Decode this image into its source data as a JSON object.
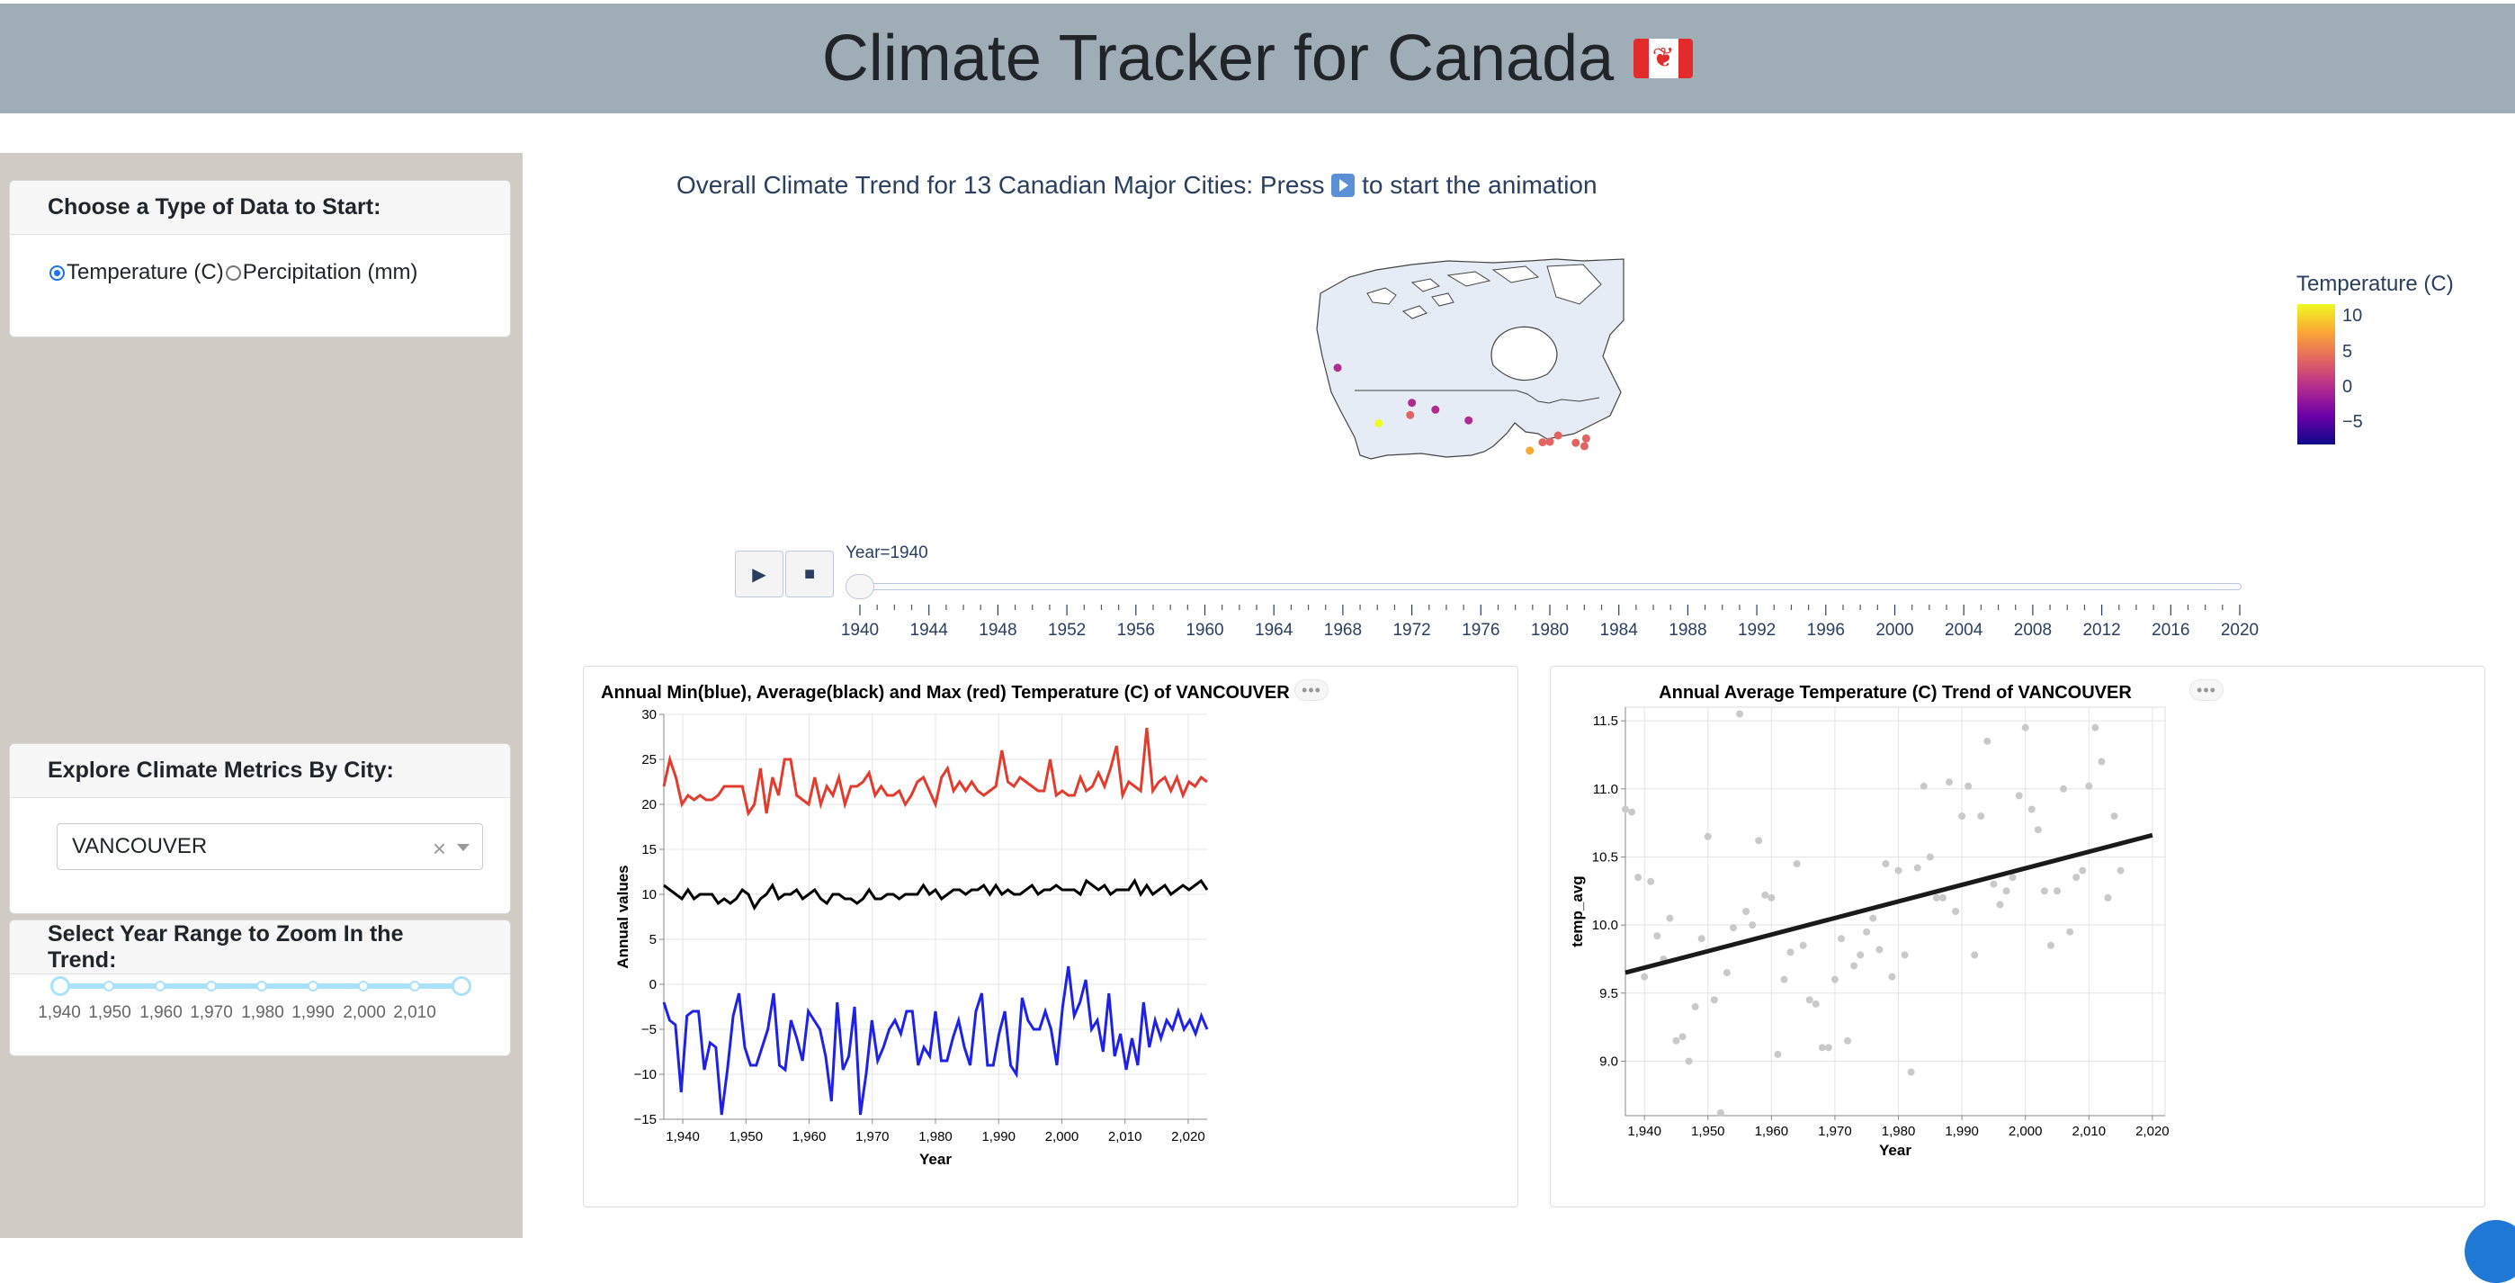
{
  "header": {
    "title": "Climate Tracker for Canada",
    "flag_icon": "canada-flag-icon"
  },
  "sidebar": {
    "data_type_card": {
      "title": "Choose a Type of Data to Start:",
      "options": [
        "Temperature (C)",
        "Percipitation (mm)"
      ],
      "selected": "Temperature (C)"
    },
    "city_card": {
      "title": "Explore Climate Metrics By City:",
      "selected_city": "VANCOUVER",
      "clear_label": "×"
    },
    "year_card": {
      "title": "Select Year Range to Zoom In the Trend:",
      "marks": [
        "1,940",
        "1,950",
        "1,960",
        "1,970",
        "1,980",
        "1,990",
        "2,000",
        "2,010"
      ],
      "range": [
        1940,
        2020
      ]
    }
  },
  "map": {
    "title_prefix": "Overall Climate Trend for 13 Canadian Major Cities: Press",
    "title_suffix": "to start the animation",
    "colorbar_title": "Temperature (C)",
    "colorbar_ticks": [
      "10",
      "5",
      "0",
      "−5"
    ],
    "colors": [
      "#f0f921",
      "#fca636",
      "#e16462",
      "#b12a90",
      "#6a00a8",
      "#0d0887"
    ],
    "cities": [
      {
        "lon": -135.0,
        "lat": 60.7,
        "temp": -1
      },
      {
        "lon": -123.1,
        "lat": 49.3,
        "temp": 11
      },
      {
        "lon": -114.0,
        "lat": 51.0,
        "temp": 4
      },
      {
        "lon": -113.5,
        "lat": 53.5,
        "temp": 2
      },
      {
        "lon": -106.7,
        "lat": 52.1,
        "temp": 2
      },
      {
        "lon": -97.1,
        "lat": 49.9,
        "temp": 2
      },
      {
        "lon": -79.4,
        "lat": 43.7,
        "temp": 7
      },
      {
        "lon": -75.7,
        "lat": 45.4,
        "temp": 6
      },
      {
        "lon": -73.6,
        "lat": 45.5,
        "temp": 6
      },
      {
        "lon": -71.2,
        "lat": 46.8,
        "temp": 4
      },
      {
        "lon": -66.1,
        "lat": 45.3,
        "temp": 5
      },
      {
        "lon": -63.6,
        "lat": 44.6,
        "temp": 6
      },
      {
        "lon": -63.1,
        "lat": 46.2,
        "temp": 5
      }
    ]
  },
  "animation": {
    "play_label": "▶",
    "stop_label": "■",
    "current_label": "Year=1940",
    "years": [
      "1940",
      "1944",
      "1948",
      "1952",
      "1956",
      "1960",
      "1964",
      "1968",
      "1972",
      "1976",
      "1980",
      "1984",
      "1988",
      "1992",
      "1996",
      "2000",
      "2004",
      "2008",
      "2012",
      "2016",
      "2020"
    ]
  },
  "chart_data": [
    {
      "type": "line",
      "title": "Annual Min(blue), Average(black) and Max (red) Temperature (C) of VANCOUVER",
      "xlabel": "Year",
      "ylabel": "Annual values",
      "xlim": [
        1937,
        2023
      ],
      "ylim": [
        -15,
        30
      ],
      "xticks": [
        "1,940",
        "1,950",
        "1,960",
        "1,970",
        "1,980",
        "1,990",
        "2,000",
        "2,010",
        "2,020"
      ],
      "yticks": [
        "30",
        "25",
        "20",
        "15",
        "10",
        "5",
        "0",
        "−5",
        "−10",
        "−15"
      ],
      "series": [
        {
          "color": "#e23c2e",
          "x_start": 1937,
          "values": [
            22,
            25,
            23,
            20,
            21,
            20.5,
            21,
            20.5,
            20.5,
            21,
            22,
            22,
            22,
            22,
            19,
            20,
            24,
            19,
            23,
            21,
            25,
            25,
            21,
            20.5,
            20,
            23,
            20,
            22,
            21,
            23,
            20,
            22,
            22,
            22.5,
            23.5,
            21,
            22,
            21,
            21,
            21.5,
            20,
            21,
            22.5,
            23,
            21.5,
            20,
            23,
            24,
            21.5,
            22.5,
            21.5,
            22.5,
            21.5,
            21,
            21.5,
            22,
            26,
            22.5,
            22,
            23,
            22.5,
            22,
            21.5,
            21.5,
            25,
            21,
            21.5,
            21,
            21,
            23,
            21.5,
            22,
            23.5,
            22,
            24,
            26.5,
            21,
            22.5,
            22,
            21.5,
            28.5,
            21.5,
            22.5,
            23,
            21.5,
            23,
            21,
            22.5,
            22,
            23,
            22.5
          ]
        },
        {
          "color": "#000000",
          "x_start": 1937,
          "values": [
            11,
            10.5,
            10,
            9.5,
            10.5,
            9.5,
            10,
            10,
            10,
            9,
            9.5,
            9,
            9.5,
            10.5,
            10,
            8.5,
            9.5,
            10,
            11,
            9.5,
            10,
            10,
            10.5,
            9.5,
            10,
            10.5,
            9.5,
            9,
            10,
            10,
            9.5,
            9.5,
            9,
            9.5,
            10.5,
            9.5,
            9.5,
            10,
            10,
            9.5,
            10,
            10,
            10,
            11,
            10,
            10.5,
            9.5,
            10,
            10.5,
            10.5,
            10,
            10.5,
            10.5,
            11,
            10,
            11,
            10,
            10.5,
            10,
            10,
            10.5,
            11,
            10,
            10.5,
            10.5,
            11,
            10.5,
            10.5,
            10.5,
            10,
            11.5,
            11,
            10.5,
            11,
            10,
            10.5,
            10.5,
            10.5,
            11.5,
            10,
            11,
            10,
            10.5,
            11,
            10,
            10.5,
            11,
            10.5,
            11,
            11.5,
            10.5
          ]
        },
        {
          "color": "#1f22e6",
          "x_start": 1937,
          "values": [
            -2,
            -4,
            -4.5,
            -12,
            -3.5,
            -3,
            -3,
            -9.5,
            -6.5,
            -7,
            -14.5,
            -9.5,
            -3.5,
            -1,
            -7,
            -9,
            -9,
            -7,
            -5,
            -1,
            -9,
            -9.5,
            -4,
            -6,
            -8.5,
            -3,
            -4,
            -5,
            -8,
            -13,
            -2,
            -9.5,
            -8,
            -2.5,
            -14.5,
            -10,
            -4,
            -8.5,
            -7,
            -5,
            -4,
            -5.5,
            -3,
            -3,
            -9,
            -7,
            -8,
            -3,
            -8.5,
            -8.5,
            -6,
            -4,
            -7,
            -9,
            -3,
            -1,
            -9,
            -9,
            -5.5,
            -3,
            -9,
            -10,
            -1.5,
            -4,
            -5,
            -5,
            -3,
            -5,
            -9,
            -2.5,
            2,
            -3.5,
            -2,
            0.5,
            -5,
            -4,
            -7.5,
            -1,
            -8,
            -5.5,
            -9.5,
            -6,
            -9,
            -2,
            -7,
            -4,
            -6,
            -4,
            -5,
            -3,
            -5,
            -4,
            -5.5,
            -3.5,
            -5
          ]
        }
      ]
    },
    {
      "type": "scatter",
      "title": "Annual Average Temperature (C) Trend of VANCOUVER",
      "xlabel": "Year",
      "ylabel": "temp_avg",
      "xlim": [
        1937,
        2022
      ],
      "ylim": [
        8.6,
        11.6
      ],
      "xticks": [
        "1,940",
        "1,950",
        "1,960",
        "1,970",
        "1,980",
        "1,990",
        "2,000",
        "2,010",
        "2,020"
      ],
      "yticks": [
        "11.5",
        "11.0",
        "10.5",
        "10.0",
        "9.5",
        "9.0"
      ],
      "trend": [
        [
          1937,
          9.65
        ],
        [
          2020,
          10.66
        ]
      ],
      "points": [
        [
          1937,
          10.85
        ],
        [
          1938,
          10.83
        ],
        [
          1939,
          10.35
        ],
        [
          1940,
          9.62
        ],
        [
          1941,
          10.32
        ],
        [
          1942,
          9.92
        ],
        [
          1943,
          9.75
        ],
        [
          1944,
          10.05
        ],
        [
          1945,
          9.15
        ],
        [
          1946,
          9.18
        ],
        [
          1947,
          9.0
        ],
        [
          1948,
          9.4
        ],
        [
          1949,
          9.9
        ],
        [
          1950,
          10.65
        ],
        [
          1951,
          9.45
        ],
        [
          1952,
          8.62
        ],
        [
          1953,
          9.65
        ],
        [
          1954,
          9.98
        ],
        [
          1955,
          11.55
        ],
        [
          1956,
          10.1
        ],
        [
          1957,
          10.0
        ],
        [
          1958,
          10.62
        ],
        [
          1959,
          10.22
        ],
        [
          1960,
          10.2
        ],
        [
          1961,
          9.05
        ],
        [
          1962,
          9.6
        ],
        [
          1963,
          9.8
        ],
        [
          1964,
          10.45
        ],
        [
          1965,
          9.85
        ],
        [
          1966,
          9.45
        ],
        [
          1967,
          9.42
        ],
        [
          1968,
          9.1
        ],
        [
          1969,
          9.1
        ],
        [
          1970,
          9.6
        ],
        [
          1971,
          9.9
        ],
        [
          1972,
          9.15
        ],
        [
          1973,
          9.7
        ],
        [
          1974,
          9.78
        ],
        [
          1975,
          9.95
        ],
        [
          1976,
          10.05
        ],
        [
          1977,
          9.82
        ],
        [
          1978,
          10.45
        ],
        [
          1979,
          9.62
        ],
        [
          1980,
          10.4
        ],
        [
          1981,
          9.78
        ],
        [
          1982,
          8.92
        ],
        [
          1983,
          10.42
        ],
        [
          1984,
          11.02
        ],
        [
          1985,
          10.5
        ],
        [
          1986,
          10.2
        ],
        [
          1987,
          10.2
        ],
        [
          1988,
          11.05
        ],
        [
          1989,
          10.1
        ],
        [
          1990,
          10.8
        ],
        [
          1991,
          11.02
        ],
        [
          1992,
          9.78
        ],
        [
          1993,
          10.8
        ],
        [
          1994,
          11.35
        ],
        [
          1995,
          10.3
        ],
        [
          1996,
          10.15
        ],
        [
          1997,
          10.25
        ],
        [
          1998,
          10.35
        ],
        [
          1999,
          10.95
        ],
        [
          2000,
          11.45
        ],
        [
          2001,
          10.85
        ],
        [
          2002,
          10.7
        ],
        [
          2003,
          10.25
        ],
        [
          2004,
          9.85
        ],
        [
          2005,
          10.25
        ],
        [
          2006,
          11.0
        ],
        [
          2007,
          9.95
        ],
        [
          2008,
          10.35
        ],
        [
          2009,
          10.4
        ],
        [
          2010,
          11.02
        ],
        [
          2011,
          11.45
        ],
        [
          2012,
          11.2
        ],
        [
          2013,
          10.2
        ],
        [
          2014,
          10.8
        ],
        [
          2015,
          10.4
        ]
      ]
    }
  ]
}
